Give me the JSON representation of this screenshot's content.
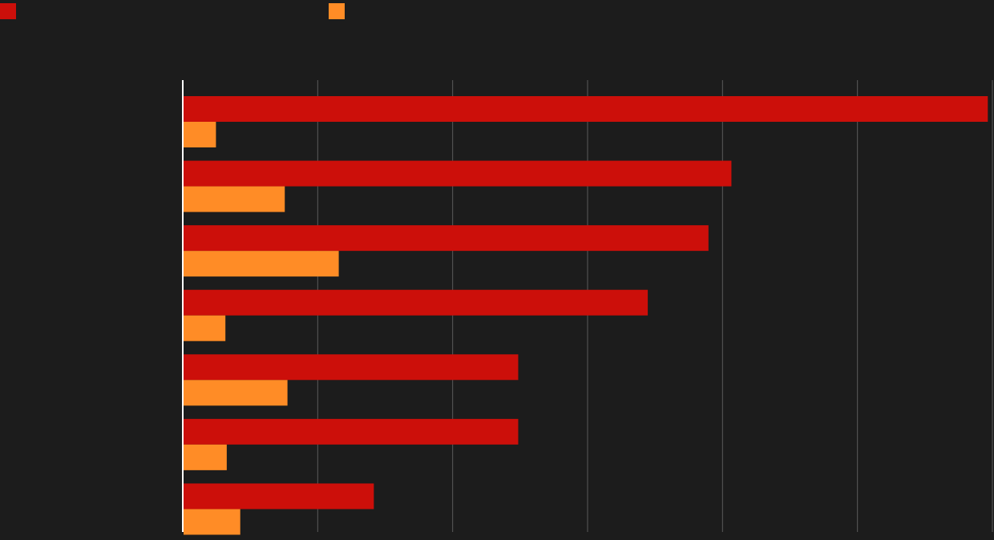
{
  "chart_data": {
    "type": "bar",
    "orientation": "horizontal",
    "categories": [
      null,
      null,
      null,
      null,
      null,
      null,
      null
    ],
    "series": [
      {
        "color": "#cc0f0a",
        "values": [
          5.96,
          4.06,
          3.89,
          3.44,
          2.48,
          2.48,
          1.41
        ]
      },
      {
        "color": "#ff8c26",
        "values": [
          0.24,
          0.75,
          1.15,
          0.31,
          0.77,
          0.32,
          0.42
        ]
      }
    ],
    "xlim": [
      0,
      6
    ],
    "xticks": [
      0,
      1,
      2,
      3,
      4,
      5,
      6
    ],
    "grid": true
  }
}
